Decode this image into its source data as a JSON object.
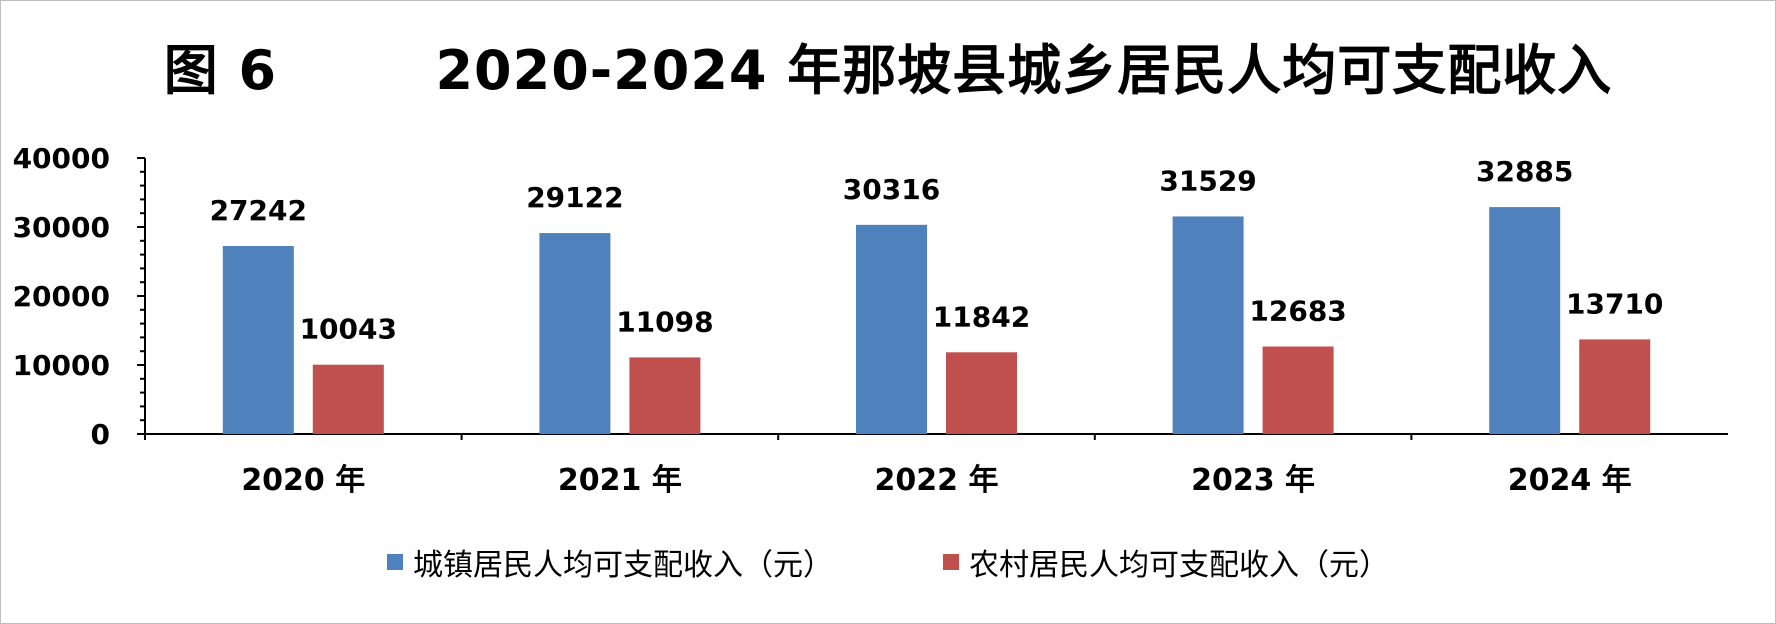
{
  "title": "图 6        2020-2024 年那坡县城乡居民人均可支配收入",
  "chart_data": {
    "type": "bar",
    "title": "图 6        2020-2024 年那坡县城乡居民人均可支配收入",
    "categories": [
      "2020 年",
      "2021 年",
      "2022 年",
      "2023 年",
      "2024 年"
    ],
    "series": [
      {
        "name": "城镇居民人均可支配收入（元）",
        "values": [
          27242,
          29122,
          30316,
          31529,
          32885
        ],
        "color": "#4f81bd"
      },
      {
        "name": "农村居民人均可支配收入（元）",
        "values": [
          10043,
          11098,
          11842,
          12683,
          13710
        ],
        "color": "#c0504d"
      }
    ],
    "yticks": [
      "0",
      "10000",
      "20000",
      "30000",
      "40000"
    ],
    "ylim": [
      0,
      40000
    ],
    "grid": false,
    "legend": "bottom"
  }
}
